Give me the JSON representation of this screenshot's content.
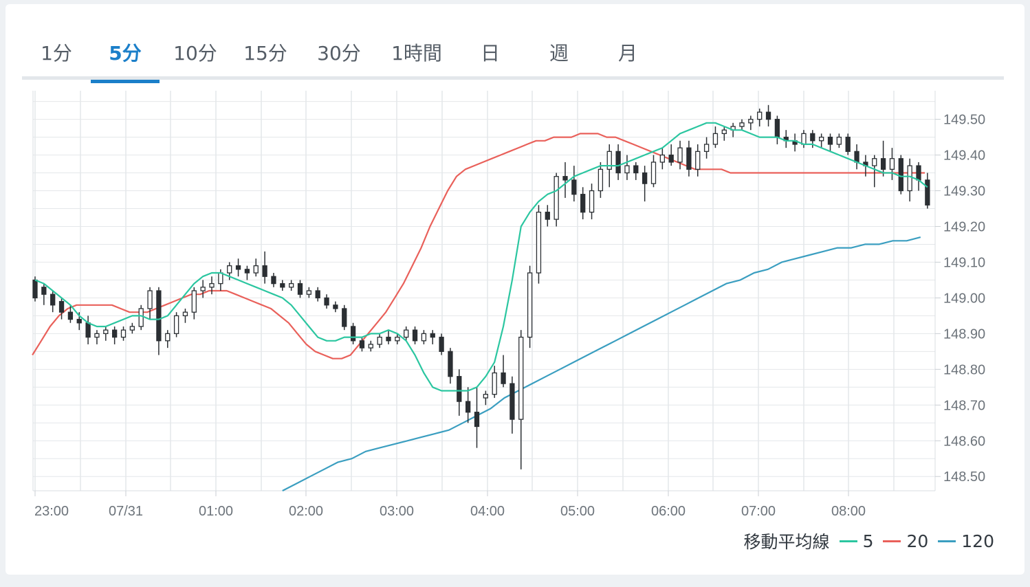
{
  "tabs": [
    {
      "label": "1分",
      "active": false
    },
    {
      "label": "5分",
      "active": true
    },
    {
      "label": "10分",
      "active": false
    },
    {
      "label": "15分",
      "active": false
    },
    {
      "label": "30分",
      "active": false
    },
    {
      "label": "1時間",
      "active": false
    },
    {
      "label": "日",
      "active": false
    },
    {
      "label": "週",
      "active": false
    },
    {
      "label": "月",
      "active": false
    }
  ],
  "legend": {
    "title": "移動平均線",
    "items": [
      {
        "label": "5",
        "color": "#2bc6a0"
      },
      {
        "label": "20",
        "color": "#e9605a"
      },
      {
        "label": "120",
        "color": "#3a9ec0"
      }
    ]
  },
  "chart_data": {
    "type": "candlestick",
    "x_ticks": [
      "23:00",
      "07/31",
      "01:00",
      "02:00",
      "03:00",
      "04:00",
      "05:00",
      "06:00",
      "07:00",
      "08:00"
    ],
    "y_ticks": [
      "149.50",
      "149.40",
      "149.30",
      "149.20",
      "149.10",
      "149.00",
      "148.90",
      "148.80",
      "148.70",
      "148.60",
      "148.50"
    ],
    "ylim": [
      148.46,
      149.58
    ],
    "candle_count": 102,
    "candles_ohlc": [
      [
        149.05,
        149.06,
        148.99,
        149.0
      ],
      [
        149.03,
        149.04,
        148.98,
        149.01
      ],
      [
        149.01,
        149.02,
        148.96,
        148.98
      ],
      [
        148.99,
        149.0,
        148.94,
        148.96
      ],
      [
        148.96,
        148.98,
        148.93,
        148.94
      ],
      [
        148.94,
        148.96,
        148.91,
        148.93
      ],
      [
        148.93,
        148.95,
        148.87,
        148.89
      ],
      [
        148.89,
        148.91,
        148.87,
        148.9
      ],
      [
        148.9,
        148.92,
        148.88,
        148.91
      ],
      [
        148.91,
        148.92,
        148.87,
        148.89
      ],
      [
        148.89,
        148.92,
        148.88,
        148.91
      ],
      [
        148.91,
        148.93,
        148.9,
        148.92
      ],
      [
        148.92,
        148.98,
        148.91,
        148.97
      ],
      [
        148.97,
        149.03,
        148.94,
        149.02
      ],
      [
        149.02,
        149.03,
        148.84,
        148.88
      ],
      [
        148.88,
        148.91,
        148.86,
        148.9
      ],
      [
        148.9,
        148.96,
        148.89,
        148.95
      ],
      [
        148.95,
        148.97,
        148.93,
        148.96
      ],
      [
        148.96,
        149.03,
        148.94,
        149.02
      ],
      [
        149.02,
        149.05,
        149.0,
        149.03
      ],
      [
        149.03,
        149.06,
        149.01,
        149.04
      ],
      [
        149.04,
        149.08,
        149.02,
        149.07
      ],
      [
        149.07,
        149.1,
        149.05,
        149.09
      ],
      [
        149.09,
        149.11,
        149.06,
        149.08
      ],
      [
        149.08,
        149.09,
        149.05,
        149.07
      ],
      [
        149.07,
        149.11,
        149.06,
        149.09
      ],
      [
        149.09,
        149.13,
        149.04,
        149.06
      ],
      [
        149.06,
        149.07,
        149.03,
        149.04
      ],
      [
        149.04,
        149.05,
        149.02,
        149.03
      ],
      [
        149.03,
        149.05,
        149.02,
        149.04
      ],
      [
        149.04,
        149.05,
        149.0,
        149.01
      ],
      [
        149.01,
        149.03,
        149.0,
        149.02
      ],
      [
        149.02,
        149.03,
        148.99,
        149.0
      ],
      [
        149.0,
        149.01,
        148.97,
        148.98
      ],
      [
        148.98,
        148.99,
        148.96,
        148.97
      ],
      [
        148.97,
        148.98,
        148.91,
        148.92
      ],
      [
        148.92,
        148.93,
        148.87,
        148.88
      ],
      [
        148.88,
        148.89,
        148.85,
        148.86
      ],
      [
        148.86,
        148.88,
        148.85,
        148.87
      ],
      [
        148.87,
        148.9,
        148.86,
        148.89
      ],
      [
        148.89,
        148.91,
        148.87,
        148.88
      ],
      [
        148.88,
        148.9,
        148.87,
        148.89
      ],
      [
        148.89,
        148.92,
        148.88,
        148.91
      ],
      [
        148.91,
        148.92,
        148.87,
        148.88
      ],
      [
        148.88,
        148.91,
        148.87,
        148.9
      ],
      [
        148.9,
        148.91,
        148.87,
        148.89
      ],
      [
        148.89,
        148.9,
        148.84,
        148.85
      ],
      [
        148.85,
        148.86,
        148.76,
        148.78
      ],
      [
        148.78,
        148.8,
        148.67,
        148.71
      ],
      [
        148.71,
        148.75,
        148.65,
        148.68
      ],
      [
        148.68,
        148.75,
        148.58,
        148.64
      ],
      [
        148.72,
        148.74,
        148.7,
        148.73
      ],
      [
        148.73,
        148.81,
        148.72,
        148.79
      ],
      [
        148.79,
        148.84,
        148.75,
        148.76
      ],
      [
        148.76,
        148.78,
        148.62,
        148.66
      ],
      [
        148.66,
        148.91,
        148.52,
        148.89
      ],
      [
        148.89,
        149.09,
        148.86,
        149.07
      ],
      [
        149.07,
        149.26,
        149.04,
        149.24
      ],
      [
        149.24,
        149.26,
        149.2,
        149.22
      ],
      [
        149.22,
        149.35,
        149.2,
        149.34
      ],
      [
        149.34,
        149.38,
        149.28,
        149.33
      ],
      [
        149.33,
        149.37,
        149.27,
        149.29
      ],
      [
        149.29,
        149.31,
        149.22,
        149.24
      ],
      [
        149.24,
        149.32,
        149.22,
        149.3
      ],
      [
        149.3,
        149.38,
        149.28,
        149.36
      ],
      [
        149.36,
        149.43,
        149.31,
        149.41
      ],
      [
        149.41,
        149.43,
        149.33,
        149.35
      ],
      [
        149.35,
        149.4,
        149.33,
        149.37
      ],
      [
        149.37,
        149.38,
        149.33,
        149.35
      ],
      [
        149.35,
        149.37,
        149.27,
        149.32
      ],
      [
        149.32,
        149.4,
        149.31,
        149.38
      ],
      [
        149.38,
        149.42,
        149.36,
        149.4
      ],
      [
        149.4,
        149.43,
        149.37,
        149.38
      ],
      [
        149.38,
        149.44,
        149.36,
        149.42
      ],
      [
        149.42,
        149.44,
        149.34,
        149.36
      ],
      [
        149.36,
        149.43,
        149.34,
        149.41
      ],
      [
        149.41,
        149.45,
        149.39,
        149.43
      ],
      [
        149.43,
        149.48,
        149.42,
        149.46
      ],
      [
        149.46,
        149.48,
        149.44,
        149.47
      ],
      [
        149.47,
        149.49,
        149.45,
        149.48
      ],
      [
        149.48,
        149.5,
        149.47,
        149.49
      ],
      [
        149.49,
        149.51,
        149.47,
        149.5
      ],
      [
        149.5,
        149.53,
        149.48,
        149.52
      ],
      [
        149.52,
        149.54,
        149.48,
        149.5
      ],
      [
        149.5,
        149.51,
        149.43,
        149.45
      ],
      [
        149.45,
        149.47,
        149.42,
        149.44
      ],
      [
        149.44,
        149.46,
        149.41,
        149.43
      ],
      [
        149.43,
        149.47,
        149.42,
        149.46
      ],
      [
        149.46,
        149.47,
        149.42,
        149.44
      ],
      [
        149.44,
        149.46,
        149.42,
        149.45
      ],
      [
        149.45,
        149.46,
        149.41,
        149.43
      ],
      [
        149.43,
        149.46,
        149.42,
        149.45
      ],
      [
        149.45,
        149.46,
        149.4,
        149.41
      ],
      [
        149.41,
        149.43,
        149.36,
        149.38
      ],
      [
        149.38,
        149.4,
        149.34,
        149.37
      ],
      [
        149.37,
        149.4,
        149.31,
        149.39
      ],
      [
        149.39,
        149.44,
        149.34,
        149.36
      ],
      [
        149.36,
        149.42,
        149.33,
        149.39
      ],
      [
        149.39,
        149.4,
        149.29,
        149.3
      ],
      [
        149.3,
        149.39,
        149.27,
        149.37
      ],
      [
        149.37,
        149.38,
        149.3,
        149.33
      ],
      [
        149.33,
        149.35,
        149.25,
        149.26
      ]
    ],
    "ma5": [
      149.05,
      149.04,
      149.02,
      149.0,
      148.98,
      148.95,
      148.93,
      148.92,
      148.92,
      148.93,
      148.94,
      148.95,
      148.95,
      148.94,
      148.94,
      148.95,
      148.98,
      149.01,
      149.04,
      149.06,
      149.07,
      149.07,
      149.06,
      149.05,
      149.04,
      149.03,
      149.02,
      149.01,
      149.0,
      148.98,
      148.95,
      148.92,
      148.89,
      148.88,
      148.88,
      148.89,
      148.89,
      148.89,
      148.9,
      148.9,
      148.91,
      148.9,
      148.88,
      148.84,
      148.79,
      148.75,
      148.74,
      148.74,
      148.74,
      148.74,
      148.75,
      148.78,
      148.82,
      148.92,
      149.05,
      149.2,
      149.24,
      149.27,
      149.29,
      149.3,
      149.32,
      149.34,
      149.35,
      149.36,
      149.37,
      149.37,
      149.37,
      149.38,
      149.39,
      149.4,
      149.41,
      149.42,
      149.44,
      149.46,
      149.47,
      149.48,
      149.49,
      149.49,
      149.48,
      149.47,
      149.47,
      149.46,
      149.45,
      149.45,
      149.45,
      149.44,
      149.44,
      149.43,
      149.43,
      149.42,
      149.41,
      149.4,
      149.39,
      149.38,
      149.37,
      149.36,
      149.35,
      149.35,
      149.34,
      149.34,
      149.33,
      149.31
    ],
    "ma20": [
      148.84,
      148.88,
      148.92,
      148.95,
      148.97,
      148.98,
      148.98,
      148.98,
      148.98,
      148.98,
      148.97,
      148.96,
      148.96,
      148.96,
      148.97,
      148.98,
      148.99,
      149.0,
      149.01,
      149.01,
      149.02,
      149.02,
      149.02,
      149.01,
      149.0,
      148.99,
      148.98,
      148.97,
      148.95,
      148.93,
      148.9,
      148.87,
      148.85,
      148.84,
      148.83,
      148.83,
      148.84,
      148.87,
      148.9,
      148.93,
      148.96,
      149.0,
      149.04,
      149.09,
      149.14,
      149.2,
      149.25,
      149.3,
      149.34,
      149.36,
      149.37,
      149.38,
      149.39,
      149.4,
      149.41,
      149.42,
      149.43,
      149.44,
      149.44,
      149.45,
      149.45,
      149.45,
      149.46,
      149.46,
      149.46,
      149.45,
      149.45,
      149.44,
      149.43,
      149.42,
      149.41,
      149.4,
      149.39,
      149.38,
      149.37,
      149.36,
      149.36,
      149.36,
      149.36,
      149.35,
      149.35,
      149.35,
      149.35,
      149.35,
      149.35,
      149.35,
      149.35,
      149.35,
      149.35,
      149.35,
      149.35,
      149.35,
      149.35,
      149.35,
      149.35,
      149.35,
      149.35,
      149.35,
      149.35,
      149.35,
      149.35,
      149.35
    ],
    "ma120": [
      148.46,
      148.48,
      148.5,
      148.52,
      148.54,
      148.55,
      148.57,
      148.58,
      148.59,
      148.6,
      148.61,
      148.62,
      148.63,
      148.65,
      148.67,
      148.69,
      148.72,
      148.74,
      148.76,
      148.78,
      148.8,
      148.82,
      148.84,
      148.86,
      148.88,
      148.9,
      148.92,
      148.94,
      148.96,
      148.98,
      149.0,
      149.02,
      149.04,
      149.05,
      149.07,
      149.08,
      149.1,
      149.11,
      149.12,
      149.13,
      149.14,
      149.14,
      149.15,
      149.15,
      149.16,
      149.16,
      149.17
    ]
  }
}
